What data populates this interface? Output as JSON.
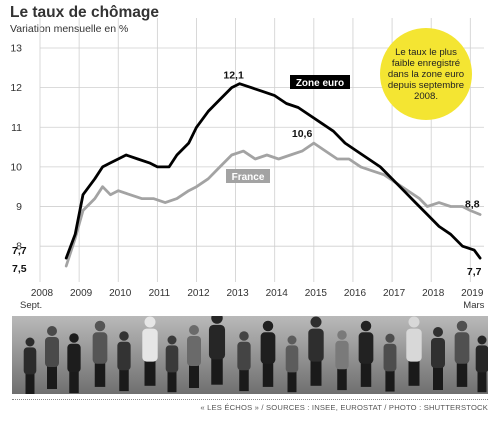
{
  "title": "Le taux de chômage",
  "subtitle": "Variation mensuelle en %",
  "callout": "Le taux le plus faible enregistré dans la zone euro depuis septembre 2008.",
  "credit": "« LES ÉCHOS » / SOURCES : INSEE, EUROSTAT / PHOTO : SHUTTERSTOCK",
  "x_start_label": "Sept.",
  "x_end_label": "Mars",
  "colors": {
    "zone_euro": "#000000",
    "france": "#a3a3a3",
    "callout": "#f4e532",
    "grid": "#cfcfcf"
  },
  "chart_data": {
    "type": "line",
    "title": "Le taux de chômage",
    "subtitle": "Variation mensuelle en %",
    "ylim": [
      7.5,
      13
    ],
    "yticks": [
      8,
      9,
      10,
      11,
      12,
      13
    ],
    "xticks": [
      "2008",
      "2009",
      "2010",
      "2011",
      "2012",
      "2013",
      "2014",
      "2015",
      "2016",
      "2017",
      "2018",
      "2019"
    ],
    "grid": true,
    "series": [
      {
        "name": "Zone euro",
        "points": [
          [
            2008.67,
            7.7
          ],
          [
            2008.9,
            8.3
          ],
          [
            2009.1,
            9.3
          ],
          [
            2009.4,
            9.7
          ],
          [
            2009.6,
            10.0
          ],
          [
            2009.8,
            10.1
          ],
          [
            2010.0,
            10.2
          ],
          [
            2010.2,
            10.3
          ],
          [
            2010.5,
            10.2
          ],
          [
            2010.8,
            10.1
          ],
          [
            2011.0,
            10.0
          ],
          [
            2011.3,
            10.0
          ],
          [
            2011.5,
            10.3
          ],
          [
            2011.8,
            10.6
          ],
          [
            2012.0,
            11.0
          ],
          [
            2012.3,
            11.4
          ],
          [
            2012.6,
            11.7
          ],
          [
            2012.9,
            12.0
          ],
          [
            2013.1,
            12.1
          ],
          [
            2013.4,
            12.0
          ],
          [
            2013.7,
            11.9
          ],
          [
            2014.0,
            11.8
          ],
          [
            2014.3,
            11.6
          ],
          [
            2014.6,
            11.5
          ],
          [
            2014.9,
            11.3
          ],
          [
            2015.2,
            11.1
          ],
          [
            2015.5,
            10.9
          ],
          [
            2015.8,
            10.6
          ],
          [
            2016.1,
            10.4
          ],
          [
            2016.4,
            10.2
          ],
          [
            2016.7,
            10.0
          ],
          [
            2017.0,
            9.7
          ],
          [
            2017.3,
            9.4
          ],
          [
            2017.6,
            9.1
          ],
          [
            2017.9,
            8.8
          ],
          [
            2018.2,
            8.5
          ],
          [
            2018.5,
            8.3
          ],
          [
            2018.8,
            8.0
          ],
          [
            2019.1,
            7.9
          ],
          [
            2019.25,
            7.7
          ]
        ],
        "label": "Zone euro",
        "first_value_label": "7,7",
        "peak_value_label": "12,1",
        "last_value_label": "7,7"
      },
      {
        "name": "France",
        "points": [
          [
            2008.67,
            7.5
          ],
          [
            2008.9,
            8.2
          ],
          [
            2009.1,
            8.9
          ],
          [
            2009.4,
            9.2
          ],
          [
            2009.6,
            9.5
          ],
          [
            2009.8,
            9.3
          ],
          [
            2010.0,
            9.4
          ],
          [
            2010.3,
            9.3
          ],
          [
            2010.6,
            9.2
          ],
          [
            2010.9,
            9.2
          ],
          [
            2011.2,
            9.1
          ],
          [
            2011.5,
            9.2
          ],
          [
            2011.8,
            9.4
          ],
          [
            2012.0,
            9.5
          ],
          [
            2012.3,
            9.7
          ],
          [
            2012.6,
            10.0
          ],
          [
            2012.9,
            10.3
          ],
          [
            2013.2,
            10.4
          ],
          [
            2013.5,
            10.2
          ],
          [
            2013.8,
            10.3
          ],
          [
            2014.1,
            10.2
          ],
          [
            2014.4,
            10.3
          ],
          [
            2014.7,
            10.4
          ],
          [
            2015.0,
            10.6
          ],
          [
            2015.3,
            10.4
          ],
          [
            2015.6,
            10.2
          ],
          [
            2015.9,
            10.2
          ],
          [
            2016.2,
            10.0
          ],
          [
            2016.5,
            9.9
          ],
          [
            2016.8,
            9.8
          ],
          [
            2017.1,
            9.6
          ],
          [
            2017.4,
            9.4
          ],
          [
            2017.7,
            9.2
          ],
          [
            2017.9,
            9.0
          ],
          [
            2018.2,
            9.1
          ],
          [
            2018.5,
            9.0
          ],
          [
            2018.8,
            9.0
          ],
          [
            2019.0,
            8.9
          ],
          [
            2019.25,
            8.8
          ]
        ],
        "label": "France",
        "first_value_label": "7,5",
        "peak_value_label": "10,6",
        "last_value_label": "8,8"
      }
    ]
  }
}
